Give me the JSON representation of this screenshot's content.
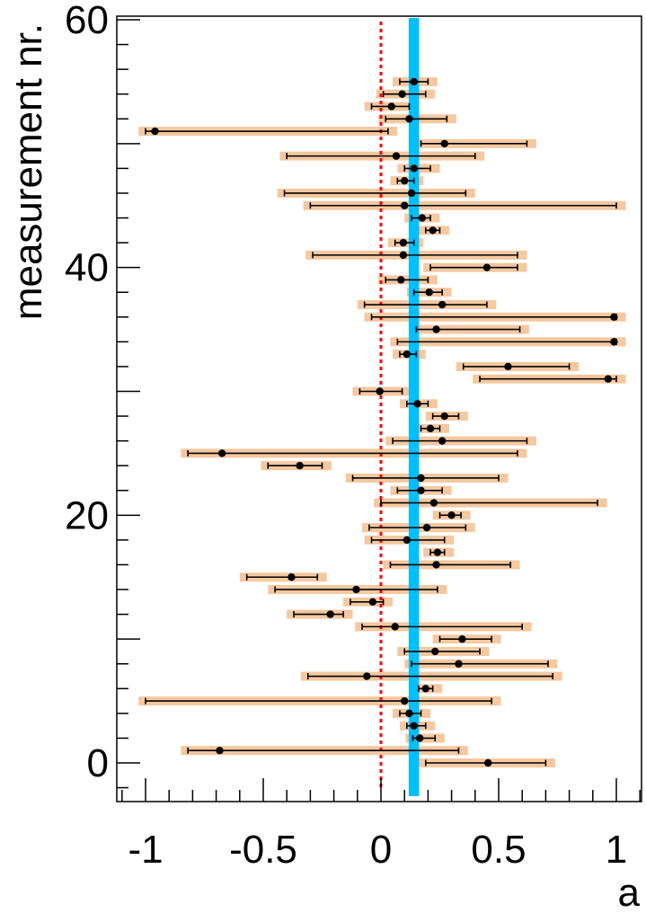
{
  "chart_data": {
    "type": "scatter",
    "xlabel": "a",
    "ylabel": "measurement nr.",
    "xlim": [
      -1.1,
      1.12
    ],
    "ylim": [
      -3,
      60
    ],
    "x_ticks": [
      -1,
      -0.5,
      0,
      0.5,
      1
    ],
    "x_tick_labels": [
      "-1",
      "-0.5",
      "0",
      "0.5",
      "1"
    ],
    "y_ticks": [
      0,
      20,
      40,
      60
    ],
    "y_tick_labels": [
      "0",
      "20",
      "40",
      "60"
    ],
    "reference_line": {
      "x": 0,
      "style": "dotted",
      "color": "#ff0000"
    },
    "average_band": {
      "x": 0.14,
      "halfwidth": 0.022,
      "color": "#00bfff"
    },
    "colors": {
      "point": "#000000",
      "stat_error": "#000000",
      "syst_band": "#f5c8a0"
    },
    "points": [
      {
        "n": 0,
        "x": 0.455,
        "lo": 0.19,
        "hi": 0.7
      },
      {
        "n": 1,
        "x": -0.685,
        "lo": -0.82,
        "hi": 0.33
      },
      {
        "n": 2,
        "x": 0.165,
        "lo": 0.135,
        "hi": 0.23
      },
      {
        "n": 3,
        "x": 0.14,
        "lo": 0.11,
        "hi": 0.19
      },
      {
        "n": 4,
        "x": 0.12,
        "lo": 0.08,
        "hi": 0.17
      },
      {
        "n": 5,
        "x": 0.1,
        "lo": -1.0,
        "hi": 0.47
      },
      {
        "n": 6,
        "x": 0.19,
        "lo": 0.16,
        "hi": 0.22
      },
      {
        "n": 7,
        "x": -0.06,
        "lo": -0.31,
        "hi": 0.73
      },
      {
        "n": 8,
        "x": 0.33,
        "lo": 0.13,
        "hi": 0.71
      },
      {
        "n": 9,
        "x": 0.23,
        "lo": 0.1,
        "hi": 0.42
      },
      {
        "n": 10,
        "x": 0.345,
        "lo": 0.25,
        "hi": 0.47
      },
      {
        "n": 11,
        "x": 0.06,
        "lo": -0.08,
        "hi": 0.6
      },
      {
        "n": 12,
        "x": -0.215,
        "lo": -0.37,
        "hi": -0.16
      },
      {
        "n": 13,
        "x": -0.035,
        "lo": -0.13,
        "hi": 0.01
      },
      {
        "n": 14,
        "x": -0.105,
        "lo": -0.45,
        "hi": 0.24
      },
      {
        "n": 15,
        "x": -0.38,
        "lo": -0.57,
        "hi": -0.27
      },
      {
        "n": 16,
        "x": 0.235,
        "lo": 0.04,
        "hi": 0.55
      },
      {
        "n": 17,
        "x": 0.24,
        "lo": 0.21,
        "hi": 0.27
      },
      {
        "n": 18,
        "x": 0.11,
        "lo": -0.04,
        "hi": 0.27
      },
      {
        "n": 19,
        "x": 0.195,
        "lo": -0.05,
        "hi": 0.36
      },
      {
        "n": 20,
        "x": 0.3,
        "lo": 0.25,
        "hi": 0.34
      },
      {
        "n": 21,
        "x": 0.225,
        "lo": 0.0,
        "hi": 0.92
      },
      {
        "n": 22,
        "x": 0.17,
        "lo": 0.07,
        "hi": 0.26
      },
      {
        "n": 23,
        "x": 0.17,
        "lo": -0.12,
        "hi": 0.5
      },
      {
        "n": 24,
        "x": -0.345,
        "lo": -0.48,
        "hi": -0.25
      },
      {
        "n": 25,
        "x": -0.675,
        "lo": -0.82,
        "hi": 0.58
      },
      {
        "n": 26,
        "x": 0.26,
        "lo": 0.05,
        "hi": 0.62
      },
      {
        "n": 27,
        "x": 0.21,
        "lo": 0.17,
        "hi": 0.25
      },
      {
        "n": 28,
        "x": 0.27,
        "lo": 0.22,
        "hi": 0.33
      },
      {
        "n": 29,
        "x": 0.155,
        "lo": 0.11,
        "hi": 0.2
      },
      {
        "n": 30,
        "x": -0.005,
        "lo": -0.09,
        "hi": 0.09
      },
      {
        "n": 31,
        "x": 0.965,
        "lo": 0.42,
        "hi": 1.0
      },
      {
        "n": 32,
        "x": 0.54,
        "lo": 0.35,
        "hi": 0.8
      },
      {
        "n": 33,
        "x": 0.11,
        "lo": 0.08,
        "hi": 0.15
      },
      {
        "n": 34,
        "x": 0.99,
        "lo": 0.07,
        "hi": 1.0
      },
      {
        "n": 35,
        "x": 0.235,
        "lo": 0.15,
        "hi": 0.59
      },
      {
        "n": 36,
        "x": 0.99,
        "lo": -0.04,
        "hi": 1.0
      },
      {
        "n": 37,
        "x": 0.26,
        "lo": -0.07,
        "hi": 0.45
      },
      {
        "n": 38,
        "x": 0.205,
        "lo": 0.14,
        "hi": 0.26
      },
      {
        "n": 39,
        "x": 0.085,
        "lo": 0.02,
        "hi": 0.2
      },
      {
        "n": 40,
        "x": 0.45,
        "lo": 0.21,
        "hi": 0.58
      },
      {
        "n": 41,
        "x": 0.095,
        "lo": -0.29,
        "hi": 0.58
      },
      {
        "n": 42,
        "x": 0.095,
        "lo": 0.06,
        "hi": 0.14
      },
      {
        "n": 43,
        "x": 0.22,
        "lo": 0.19,
        "hi": 0.25
      },
      {
        "n": 44,
        "x": 0.175,
        "lo": 0.13,
        "hi": 0.21
      },
      {
        "n": 45,
        "x": 0.1,
        "lo": -0.3,
        "hi": 1.0
      },
      {
        "n": 46,
        "x": 0.13,
        "lo": -0.41,
        "hi": 0.36
      },
      {
        "n": 47,
        "x": 0.1,
        "lo": 0.07,
        "hi": 0.14
      },
      {
        "n": 48,
        "x": 0.14,
        "lo": 0.1,
        "hi": 0.21
      },
      {
        "n": 49,
        "x": 0.065,
        "lo": -0.4,
        "hi": 0.4
      },
      {
        "n": 50,
        "x": 0.27,
        "lo": 0.17,
        "hi": 0.62
      },
      {
        "n": 51,
        "x": -0.96,
        "lo": -1.0,
        "hi": 0.03
      },
      {
        "n": 52,
        "x": 0.12,
        "lo": 0.02,
        "hi": 0.28
      },
      {
        "n": 53,
        "x": 0.045,
        "lo": -0.04,
        "hi": 0.12
      },
      {
        "n": 54,
        "x": 0.09,
        "lo": 0.01,
        "hi": 0.19
      },
      {
        "n": 55,
        "x": 0.14,
        "lo": 0.08,
        "hi": 0.2
      }
    ]
  }
}
